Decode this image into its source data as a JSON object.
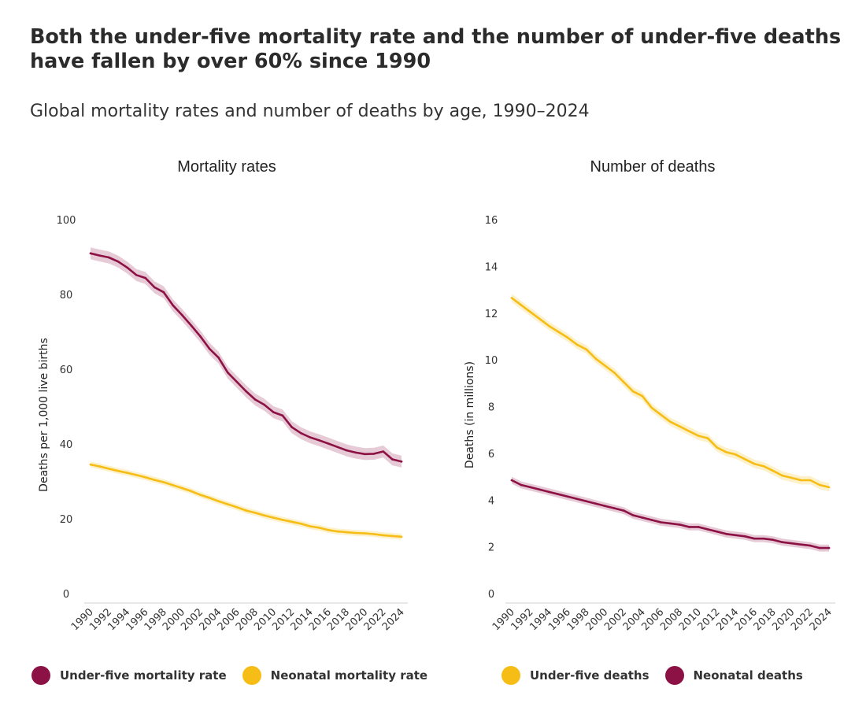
{
  "header": {
    "title": "Both the under-five mortality rate and the number of under-five deaths have fallen by over 60% since 1990",
    "subtitle": "Global mortality rates and number of deaths by age, 1990–2024"
  },
  "colors": {
    "under_five_rate": "#8c1144",
    "neonatal_rate": "#f5bd15",
    "under_five_deaths": "#f5bd15",
    "neonatal_deaths": "#8c1144",
    "band_alpha": "0.22"
  },
  "chart_data": [
    {
      "type": "line",
      "title": "Mortality rates",
      "xlabel": "",
      "ylabel": "Deaths per 1,000 live births",
      "ylim": [
        0,
        100
      ],
      "yticks": [
        "0",
        "20",
        "40",
        "60",
        "80",
        "100"
      ],
      "xticks": [
        "1990",
        "1992",
        "1994",
        "1996",
        "1998",
        "2000",
        "2002",
        "2004",
        "2006",
        "2008",
        "2010",
        "2012",
        "2014",
        "2016",
        "2018",
        "2020",
        "2022",
        "2024"
      ],
      "x": [
        1990,
        1991,
        1992,
        1993,
        1994,
        1995,
        1996,
        1997,
        1998,
        1999,
        2000,
        2001,
        2002,
        2003,
        2004,
        2005,
        2006,
        2007,
        2008,
        2009,
        2010,
        2011,
        2012,
        2013,
        2014,
        2015,
        2016,
        2017,
        2018,
        2019,
        2020,
        2021,
        2022,
        2023,
        2024
      ],
      "series": [
        {
          "name": "Under-five mortality rate",
          "color": "#8c1144",
          "values": [
            91.0,
            90.4,
            89.9,
            88.8,
            87.2,
            85.2,
            84.4,
            81.9,
            80.6,
            77.1,
            74.5,
            71.7,
            68.8,
            65.5,
            63.1,
            59.1,
            56.6,
            54.1,
            51.9,
            50.5,
            48.5,
            47.6,
            44.5,
            42.9,
            41.8,
            41.0,
            40.1,
            39.2,
            38.3,
            37.7,
            37.3,
            37.4,
            38.0,
            35.9,
            35.3
          ],
          "band": 1.6
        },
        {
          "name": "Neonatal mortality rate",
          "color": "#f5bd15",
          "values": [
            34.5,
            34.0,
            33.4,
            32.8,
            32.3,
            31.7,
            31.1,
            30.4,
            29.8,
            29.0,
            28.2,
            27.4,
            26.4,
            25.6,
            24.7,
            23.9,
            23.1,
            22.2,
            21.6,
            20.9,
            20.3,
            19.7,
            19.2,
            18.7,
            18.0,
            17.6,
            17.0,
            16.6,
            16.4,
            16.2,
            16.1,
            15.9,
            15.6,
            15.4,
            15.2
          ],
          "band": 0.8
        }
      ]
    },
    {
      "type": "line",
      "title": "Number of deaths",
      "xlabel": "",
      "ylabel": "Deaths (in millions)",
      "ylim": [
        0,
        16
      ],
      "yticks": [
        "0",
        "2",
        "4",
        "6",
        "8",
        "10",
        "12",
        "14",
        "16"
      ],
      "xticks": [
        "1990",
        "1992",
        "1994",
        "1996",
        "1998",
        "2000",
        "2002",
        "2004",
        "2006",
        "2008",
        "2010",
        "2012",
        "2014",
        "2016",
        "2018",
        "2020",
        "2022",
        "2024"
      ],
      "x": [
        1990,
        1991,
        1992,
        1993,
        1994,
        1995,
        1996,
        1997,
        1998,
        1999,
        2000,
        2001,
        2002,
        2003,
        2004,
        2005,
        2006,
        2007,
        2008,
        2009,
        2010,
        2011,
        2012,
        2013,
        2014,
        2015,
        2016,
        2017,
        2018,
        2019,
        2020,
        2021,
        2022,
        2023,
        2024
      ],
      "series": [
        {
          "name": "Under-five deaths",
          "color": "#f5bd15",
          "values": [
            12.65,
            12.35,
            12.05,
            11.75,
            11.45,
            11.2,
            10.95,
            10.65,
            10.45,
            10.05,
            9.75,
            9.45,
            9.05,
            8.65,
            8.45,
            7.95,
            7.65,
            7.35,
            7.15,
            6.95,
            6.75,
            6.65,
            6.25,
            6.05,
            5.95,
            5.75,
            5.55,
            5.45,
            5.25,
            5.05,
            4.95,
            4.85,
            4.85,
            4.65,
            4.55
          ],
          "band": 0.18
        },
        {
          "name": "Neonatal deaths",
          "color": "#8c1144",
          "values": [
            4.85,
            4.65,
            4.55,
            4.45,
            4.35,
            4.25,
            4.15,
            4.05,
            3.95,
            3.85,
            3.75,
            3.65,
            3.55,
            3.35,
            3.25,
            3.15,
            3.05,
            3.0,
            2.95,
            2.85,
            2.85,
            2.75,
            2.65,
            2.55,
            2.5,
            2.45,
            2.35,
            2.35,
            2.3,
            2.2,
            2.15,
            2.1,
            2.05,
            1.95,
            1.95
          ],
          "band": 0.15
        }
      ]
    }
  ],
  "legends": [
    [
      {
        "label": "Under-five mortality rate",
        "color": "#8c1144"
      },
      {
        "label": "Neonatal mortality rate",
        "color": "#f5bd15"
      }
    ],
    [
      {
        "label": "Under-five deaths",
        "color": "#f5bd15"
      },
      {
        "label": "Neonatal deaths",
        "color": "#8c1144"
      }
    ]
  ]
}
